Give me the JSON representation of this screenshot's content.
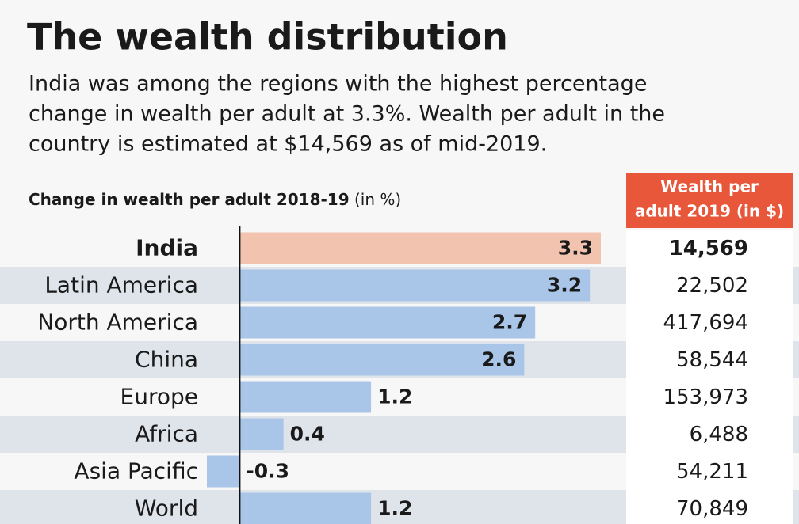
{
  "chart_data": {
    "type": "bar",
    "orientation": "horizontal",
    "title": "The wealth distribution",
    "subtitle": [
      "India was among the regions with the highest percentage",
      "change in wealth per adult at 3.3%. Wealth per adult in the",
      "country is estimated at $14,569 as of mid-2019."
    ],
    "axis_label": "Change in wealth per adult 2018-19",
    "axis_unit": "(in %)",
    "categories": [
      "India",
      "Latin America",
      "North America",
      "China",
      "Europe",
      "Africa",
      "Asia Pacific",
      "World"
    ],
    "values": [
      3.3,
      3.2,
      2.7,
      2.6,
      1.2,
      0.4,
      -0.3,
      1.2
    ],
    "colors": [
      "#f2c3ae",
      "#a9c5e8",
      "#a9c5e8",
      "#a9c5e8",
      "#a9c5e8",
      "#a9c5e8",
      "#a9c5e8",
      "#a9c5e8"
    ],
    "highlight": "India",
    "xlim": [
      -0.3,
      3.3
    ],
    "table": {
      "header": [
        "Wealth per",
        "adult 2019 (in $)"
      ],
      "values": [
        "14,569",
        "22,502",
        "417,694",
        "58,544",
        "153,973",
        "6,488",
        "54,211",
        "70,849"
      ]
    }
  }
}
